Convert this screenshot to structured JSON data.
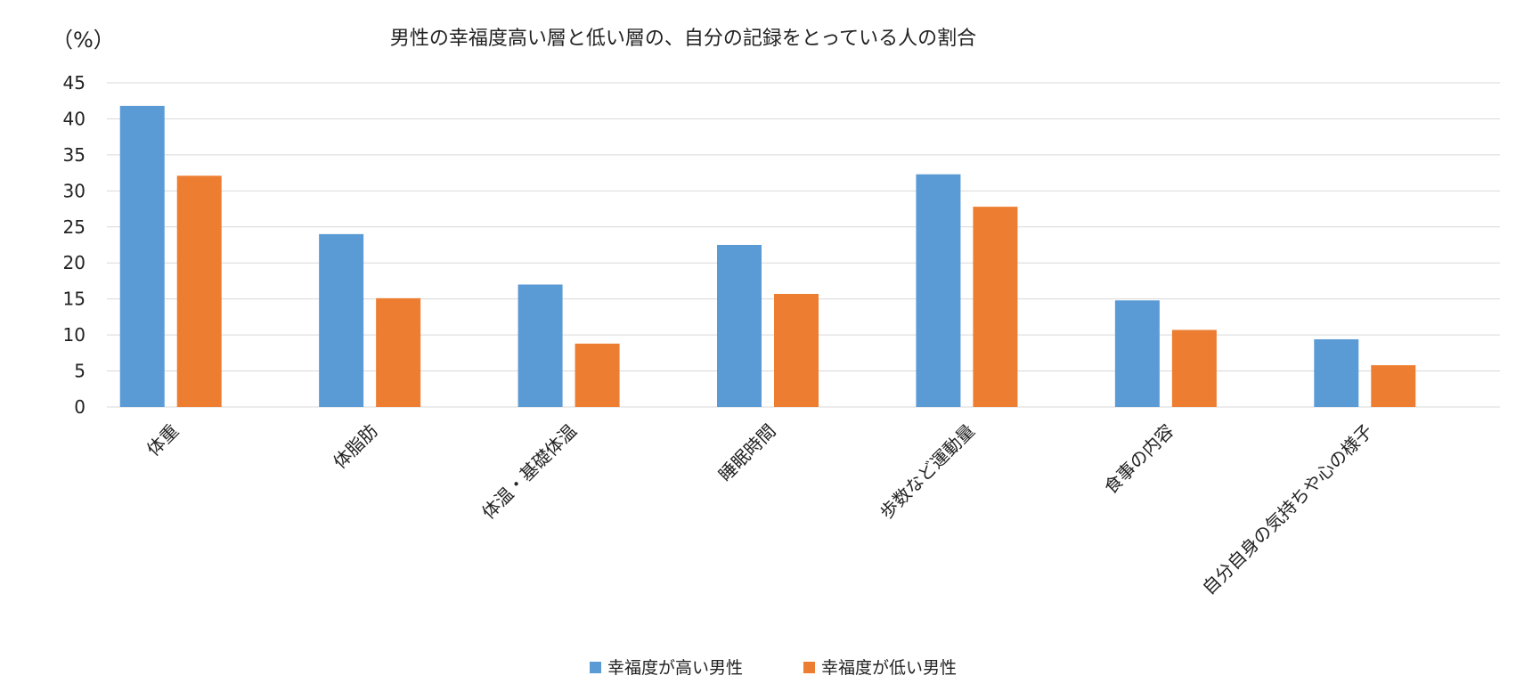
{
  "chart_data": {
    "type": "bar",
    "title": "男性の幸福度高い層と低い層の、自分の記録をとっている人の割合",
    "ylabel": "（%）",
    "ylim": [
      0,
      45
    ],
    "yticks": [
      0,
      5,
      10,
      15,
      20,
      25,
      30,
      35,
      40,
      45
    ],
    "grid": true,
    "legend_position": "bottom",
    "categories": [
      "体重",
      "体脂肪",
      "体温・基礎体温",
      "睡眠時間",
      "歩数など運動量",
      "食事の内容",
      "自分自身の気持ちや心の様子"
    ],
    "series": [
      {
        "name": "幸福度が高い男性",
        "color": "#5b9bd5",
        "values": [
          41.8,
          24.0,
          17.0,
          22.5,
          32.3,
          14.8,
          9.4
        ]
      },
      {
        "name": "幸福度が低い男性",
        "color": "#ed7d31",
        "values": [
          32.1,
          15.1,
          8.8,
          15.7,
          27.8,
          10.7,
          5.8
        ]
      }
    ]
  }
}
